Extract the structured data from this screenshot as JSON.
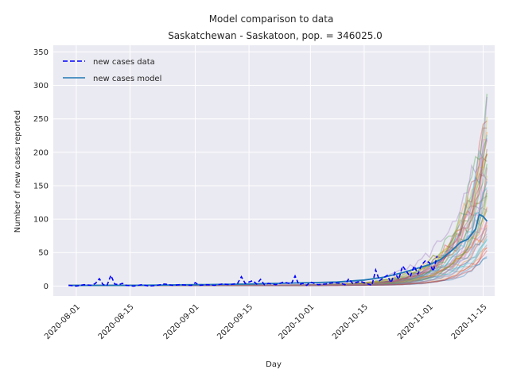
{
  "chart_data": {
    "type": "line",
    "title": "Model comparison to data",
    "subtitle": "Saskatchewan - Saskatoon, pop. = 346025.0",
    "xlabel": "Day",
    "ylabel": "Number of new cases reported",
    "xlim": [
      "2020-07-26",
      "2020-11-18"
    ],
    "ylim": [
      -15,
      360
    ],
    "x_ticks": [
      "2020-08-01",
      "2020-08-15",
      "2020-09-01",
      "2020-09-15",
      "2020-10-01",
      "2020-10-15",
      "2020-11-01",
      "2020-11-15"
    ],
    "y_ticks": [
      0,
      50,
      100,
      150,
      200,
      250,
      300,
      350
    ],
    "grid": true,
    "legend_position": "top-left",
    "colors": {
      "background": "#eaeaf2",
      "grid": "#ffffff",
      "data": "#0000ff",
      "model": "#1f77b4",
      "ensemble": [
        "#1f77b4",
        "#ff7f0e",
        "#2ca02c",
        "#d62728",
        "#9467bd",
        "#8c564b",
        "#e377c2",
        "#7f7f7f",
        "#bcbd22",
        "#17becf"
      ]
    },
    "series": [
      {
        "name": "new cases data",
        "style": "dashed",
        "points": [
          [
            "2020-07-30",
            1
          ],
          [
            "2020-08-01",
            0
          ],
          [
            "2020-08-03",
            2
          ],
          [
            "2020-08-05",
            1
          ],
          [
            "2020-08-06",
            4
          ],
          [
            "2020-08-07",
            11
          ],
          [
            "2020-08-08",
            2
          ],
          [
            "2020-08-09",
            1
          ],
          [
            "2020-08-10",
            16
          ],
          [
            "2020-08-11",
            3
          ],
          [
            "2020-08-12",
            2
          ],
          [
            "2020-08-13",
            4
          ],
          [
            "2020-08-14",
            1
          ],
          [
            "2020-08-16",
            0
          ],
          [
            "2020-08-18",
            2
          ],
          [
            "2020-08-20",
            0
          ],
          [
            "2020-08-22",
            1
          ],
          [
            "2020-08-24",
            3
          ],
          [
            "2020-08-26",
            1
          ],
          [
            "2020-08-28",
            2
          ],
          [
            "2020-08-31",
            1
          ],
          [
            "2020-09-01",
            5
          ],
          [
            "2020-09-02",
            1
          ],
          [
            "2020-09-04",
            2
          ],
          [
            "2020-09-06",
            1
          ],
          [
            "2020-09-08",
            3
          ],
          [
            "2020-09-10",
            2
          ],
          [
            "2020-09-12",
            4
          ],
          [
            "2020-09-13",
            14
          ],
          [
            "2020-09-14",
            4
          ],
          [
            "2020-09-15",
            6
          ],
          [
            "2020-09-16",
            8
          ],
          [
            "2020-09-17",
            3
          ],
          [
            "2020-09-18",
            10
          ],
          [
            "2020-09-19",
            2
          ],
          [
            "2020-09-20",
            4
          ],
          [
            "2020-09-22",
            2
          ],
          [
            "2020-09-24",
            6
          ],
          [
            "2020-09-26",
            3
          ],
          [
            "2020-09-27",
            15
          ],
          [
            "2020-09-28",
            2
          ],
          [
            "2020-09-29",
            4
          ],
          [
            "2020-09-30",
            1
          ],
          [
            "2020-10-01",
            6
          ],
          [
            "2020-10-03",
            2
          ],
          [
            "2020-10-05",
            3
          ],
          [
            "2020-10-07",
            5
          ],
          [
            "2020-10-09",
            4
          ],
          [
            "2020-10-10",
            2
          ],
          [
            "2020-10-11",
            11
          ],
          [
            "2020-10-12",
            4
          ],
          [
            "2020-10-14",
            7
          ],
          [
            "2020-10-16",
            3
          ],
          [
            "2020-10-17",
            1
          ],
          [
            "2020-10-18",
            24
          ],
          [
            "2020-10-19",
            8
          ],
          [
            "2020-10-20",
            12
          ],
          [
            "2020-10-21",
            16
          ],
          [
            "2020-10-22",
            5
          ],
          [
            "2020-10-23",
            20
          ],
          [
            "2020-10-24",
            10
          ],
          [
            "2020-10-25",
            30
          ],
          [
            "2020-10-26",
            22
          ],
          [
            "2020-10-27",
            14
          ],
          [
            "2020-10-28",
            30
          ],
          [
            "2020-10-29",
            18
          ],
          [
            "2020-10-30",
            32
          ],
          [
            "2020-10-31",
            38
          ],
          [
            "2020-11-01",
            35
          ],
          [
            "2020-11-02",
            22
          ],
          [
            "2020-11-03",
            45
          ]
        ]
      },
      {
        "name": "new cases model",
        "style": "solid",
        "points": [
          [
            "2020-07-30",
            1
          ],
          [
            "2020-08-15",
            1
          ],
          [
            "2020-09-01",
            2
          ],
          [
            "2020-09-15",
            3
          ],
          [
            "2020-10-01",
            5
          ],
          [
            "2020-10-08",
            6
          ],
          [
            "2020-10-15",
            9
          ],
          [
            "2020-10-20",
            13
          ],
          [
            "2020-10-25",
            20
          ],
          [
            "2020-10-28",
            25
          ],
          [
            "2020-11-01",
            32
          ],
          [
            "2020-11-04",
            40
          ],
          [
            "2020-11-07",
            54
          ],
          [
            "2020-11-09",
            65
          ],
          [
            "2020-11-11",
            70
          ],
          [
            "2020-11-13",
            85
          ],
          [
            "2020-11-14",
            107
          ],
          [
            "2020-11-15",
            104
          ],
          [
            "2020-11-16",
            97
          ]
        ]
      }
    ]
  }
}
